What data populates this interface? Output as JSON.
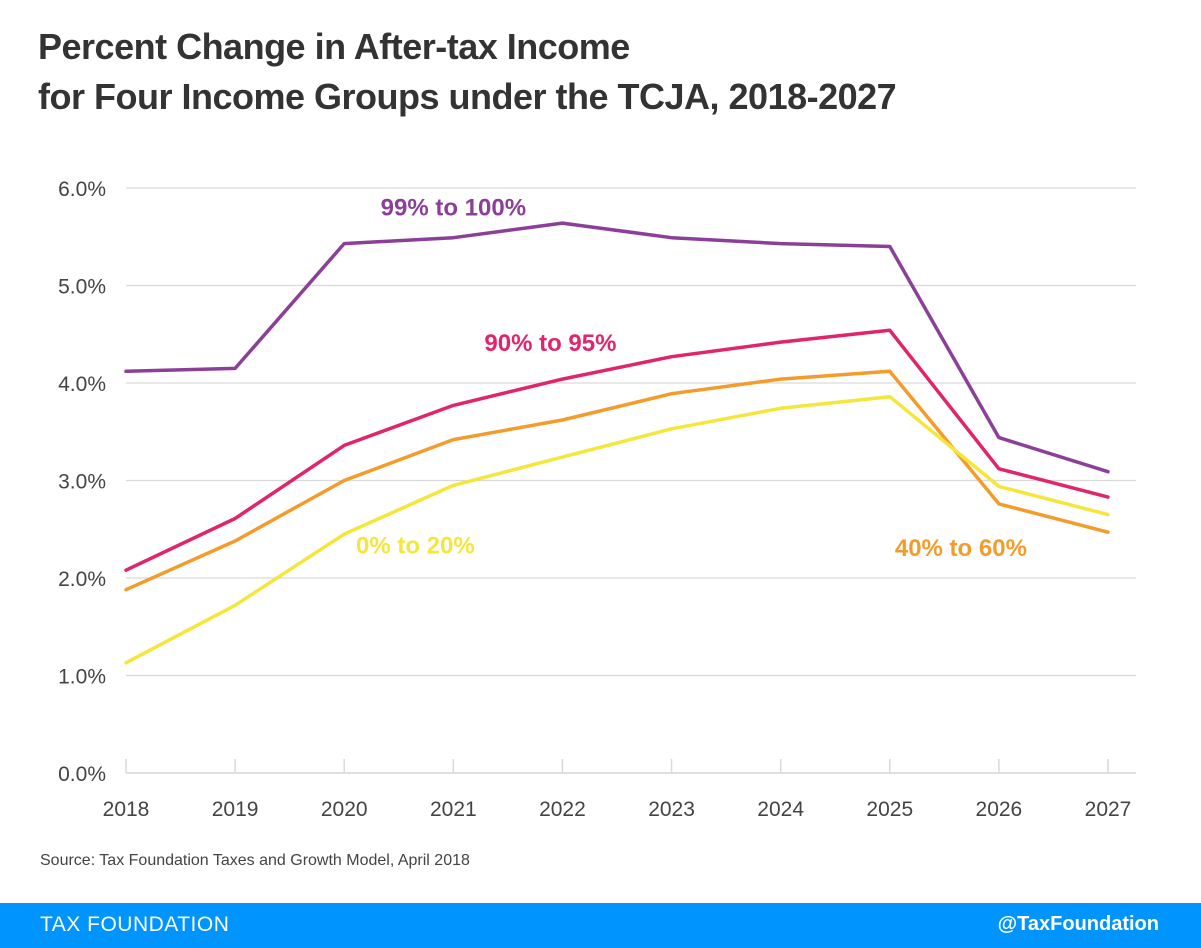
{
  "header": {
    "title_line1": "Percent Change in  After-tax Income",
    "title_line2": "for Four Income Groups under the TCJA, 2018-2027"
  },
  "source": "Source: Tax Foundation Taxes and Growth Model, April 2018",
  "footer": {
    "brand": "TAX FOUNDATION",
    "handle": "@TaxFoundation"
  },
  "colors": {
    "footer_bg": "#0094ff",
    "grid": "#d9d9d9",
    "axis_text": "#444444"
  },
  "chart_data": {
    "type": "line",
    "x": [
      "2018",
      "2019",
      "2020",
      "2021",
      "2022",
      "2023",
      "2024",
      "2025",
      "2026",
      "2027"
    ],
    "ylim": [
      0,
      6
    ],
    "yticks": [
      "0.0%",
      "1.0%",
      "2.0%",
      "3.0%",
      "4.0%",
      "5.0%",
      "6.0%"
    ],
    "grid": true,
    "series": [
      {
        "name": "99% to 100%",
        "color": "#8b3f98",
        "values": [
          4.12,
          4.15,
          5.43,
          5.49,
          5.64,
          5.49,
          5.43,
          5.4,
          3.44,
          3.09
        ]
      },
      {
        "name": "90%  to 95%",
        "color": "#e0256b",
        "values": [
          2.08,
          2.61,
          3.36,
          3.77,
          4.04,
          4.27,
          4.42,
          4.54,
          3.12,
          2.83
        ]
      },
      {
        "name": "40% to 60%",
        "color": "#f39c2c",
        "values": [
          1.88,
          2.38,
          3.0,
          3.42,
          3.62,
          3.89,
          4.04,
          4.12,
          2.76,
          2.47
        ]
      },
      {
        "name": "0% to 20%",
        "color": "#f5e63b",
        "values": [
          1.13,
          1.72,
          2.45,
          2.95,
          3.24,
          3.53,
          3.74,
          3.86,
          2.94,
          2.65
        ]
      }
    ]
  }
}
